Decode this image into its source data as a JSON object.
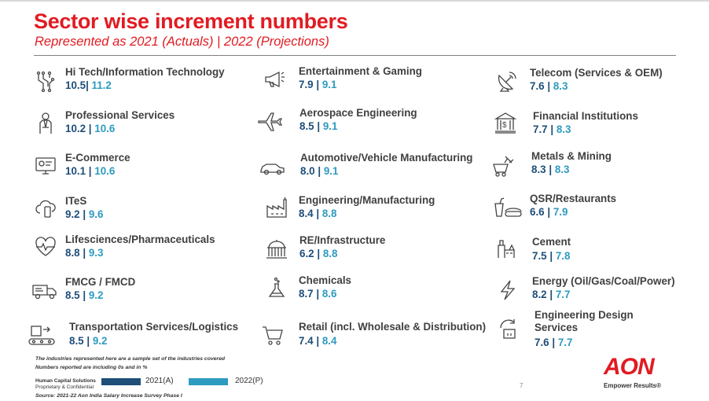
{
  "header": {
    "title": "Sector wise increment numbers",
    "subtitle": "Represented as 2021 (Actuals) | 2022 (Projections)"
  },
  "colors": {
    "title": "#e11b22",
    "actual": "#1f4e79",
    "projection": "#2e9bc0"
  },
  "sectors": [
    {
      "name": "Hi Tech/Information Technology",
      "y2021": "10.5",
      "sep": "| ",
      "y2022": "11.2",
      "icon": "circuit-icon"
    },
    {
      "name": "Professional Services",
      "y2021": "10.2",
      "sep": " | ",
      "y2022": "10.6",
      "icon": "businessman-icon"
    },
    {
      "name": "E-Commerce",
      "y2021": "10.1",
      "sep": " | ",
      "y2022": "10.6",
      "icon": "computer-shop-icon"
    },
    {
      "name": "ITeS",
      "y2021": "9.2",
      "sep": " | ",
      "y2022": "9.6",
      "icon": "cloud-device-icon"
    },
    {
      "name": "Lifesciences/Pharmaceuticals",
      "y2021": "8.8",
      "sep": " | ",
      "y2022": "9.3",
      "icon": "heartbeat-icon"
    },
    {
      "name": "FMCG / FMCD",
      "y2021": "8.5",
      "sep": " | ",
      "y2022": "9.2",
      "icon": "delivery-truck-icon"
    },
    {
      "name": "Transportation Services/Logistics",
      "y2021": "8.5",
      "sep": " | ",
      "y2022": "9.2",
      "icon": "conveyor-icon"
    },
    {
      "name": "Entertainment & Gaming",
      "y2021": "7.9",
      "sep": " | ",
      "y2022": "9.1",
      "icon": "megaphone-icon"
    },
    {
      "name": "Aerospace Engineering",
      "y2021": "8.5",
      "sep": " | ",
      "y2022": "9.1",
      "icon": "airplane-icon"
    },
    {
      "name": "Automotive/Vehicle Manufacturing",
      "y2021": "8.0",
      "sep": " | ",
      "y2022": "9.1",
      "icon": "car-icon"
    },
    {
      "name": "Engineering/Manufacturing",
      "y2021": "8.4",
      "sep": " | ",
      "y2022": "8.8",
      "icon": "factory-icon"
    },
    {
      "name": "RE/Infrastructure",
      "y2021": "6.2",
      "sep": " | ",
      "y2022": "8.8",
      "icon": "building-dome-icon"
    },
    {
      "name": "Chemicals",
      "y2021": "8.7",
      "sep": " | ",
      "y2022": "8.6",
      "icon": "flask-icon"
    },
    {
      "name": "Retail (incl. Wholesale & Distribution)",
      "y2021": "7.4",
      "sep": " | ",
      "y2022": "8.4",
      "icon": "shopping-cart-icon"
    },
    {
      "name": "Telecom (Services & OEM)",
      "y2021": "7.6",
      "sep": " | ",
      "y2022": "8.3",
      "icon": "satellite-dish-icon"
    },
    {
      "name": "Financial Institutions",
      "y2021": "7.7",
      "sep": " | ",
      "y2022": "8.3",
      "icon": "bank-icon"
    },
    {
      "name": "Metals & Mining",
      "y2021": "8.3",
      "sep": " | ",
      "y2022": "8.3",
      "icon": "mining-cart-icon"
    },
    {
      "name": "QSR/Restaurants",
      "y2021": "6.6",
      "sep": " | ",
      "y2022": "7.9",
      "icon": "fast-food-icon"
    },
    {
      "name": "Cement",
      "y2021": "7.5",
      "sep": " | ",
      "y2022": "7.8",
      "icon": "cement-plant-icon"
    },
    {
      "name": "Energy (Oil/Gas/Coal/Power)",
      "y2021": "8.2",
      "sep": " | ",
      "y2022": "7.7",
      "icon": "lightning-icon"
    },
    {
      "name": "Engineering Design Services",
      "y2021": "7.6",
      "sep": " | ",
      "y2022": "7.7",
      "icon": "design-tool-icon"
    }
  ],
  "footer": {
    "note_line1": "The industries represented here are a sample set of the industries covered",
    "note_line2": "Numbers reported are including 0s and in %",
    "brand_line1": "Human Capital Solutions",
    "brand_line2": "Proprietary & Confidential",
    "legend_2021": "2021(A)",
    "legend_2022": "2022(P)",
    "source": "Source: 2021-22 Aon India Salary Increase Survey Phase I",
    "page_number": "7",
    "logo_text": "AON",
    "tagline": "Empower Results®"
  }
}
